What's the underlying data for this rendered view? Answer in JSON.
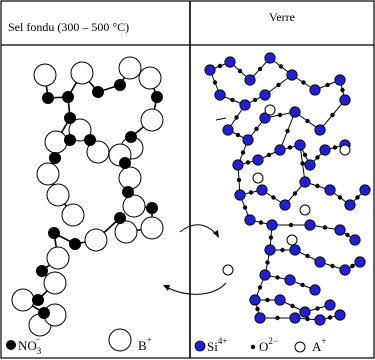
{
  "header": {
    "left_title": "Sel fondu (300 – 500 °C)",
    "right_title": "Verre"
  },
  "legend": {
    "nitrate": {
      "base": "NO",
      "sub": "3",
      "sup": "−"
    },
    "cation_b": {
      "base": "B",
      "sup": "+"
    },
    "silicon": {
      "base": "Si",
      "sup": "4+"
    },
    "oxygen": {
      "base": "O",
      "sup": "2−"
    },
    "cation_a": {
      "base": "A",
      "sup": "+"
    }
  },
  "colors": {
    "line": "#000000",
    "silicon_fill": "#1f1fd6",
    "oxygen_fill": "#000000",
    "nitrate_fill": "#000000",
    "cation_fill": "#ffffff"
  },
  "icons": {
    "exchange_arrow_top": "curved-arrow-right-icon",
    "exchange_arrow_bottom": "curved-arrow-left-icon"
  }
}
